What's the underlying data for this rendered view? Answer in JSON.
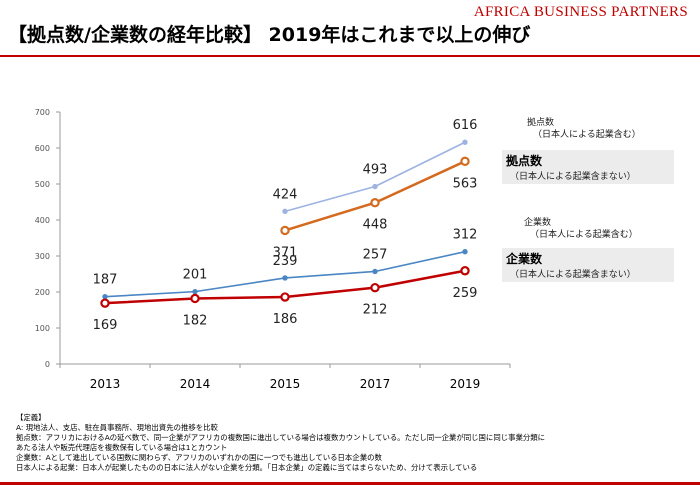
{
  "brand": "AFRICA BUSINESS PARTNERS",
  "title": "【拠点数/企業数の経年比較】 2019年はこれまで以上の伸び",
  "colors": {
    "brand_red": "#c00000",
    "bases_incl": "#9db3e0",
    "bases_excl": "#d46a1f",
    "companies_incl": "#4a86c3",
    "companies_excl": "#c00000",
    "label_bg": "#ececec"
  },
  "chart_data": {
    "type": "line",
    "categories": [
      "2013",
      "2014",
      "2015",
      "2017",
      "2019"
    ],
    "ylim": [
      0,
      700
    ],
    "yticks": [
      0,
      100,
      200,
      300,
      400,
      500,
      600,
      700
    ],
    "grid": false,
    "series": [
      {
        "name": "拠点数（日本人による起業含む）",
        "values": [
          null,
          null,
          424,
          493,
          616
        ],
        "color": "#9db3e0",
        "markers": "circle-filled-small",
        "label_pos": "above"
      },
      {
        "name": "拠点数（日本人による起業含まない）",
        "values": [
          null,
          null,
          371,
          448,
          563
        ],
        "color": "#d46a1f",
        "markers": "circle-open",
        "label_pos": "below"
      },
      {
        "name": "企業数（日本人による起業含む）",
        "values": [
          187,
          201,
          239,
          257,
          312
        ],
        "color": "#4a86c3",
        "markers": "circle-filled-small",
        "label_pos": "above"
      },
      {
        "name": "企業数（日本人による起業含まない）",
        "values": [
          169,
          182,
          186,
          212,
          259
        ],
        "color": "#c00000",
        "markers": "circle-open",
        "label_pos": "below"
      }
    ]
  },
  "legend": {
    "bases_incl": {
      "head": "拠点数",
      "sub": "（日本人による起業含む）"
    },
    "bases_excl": {
      "head": "拠点数",
      "sub": "（日本人による起業含まない）"
    },
    "companies_incl": {
      "head": "企業数",
      "sub": "（日本人による起業含む）"
    },
    "companies_excl": {
      "head": "企業数",
      "sub": "（日本人による起業含まない）"
    }
  },
  "definitions": {
    "heading": "【定義】",
    "lines": [
      "A: 現地法人、支店、駐在員事務所、現地出資先の推移を比較",
      "拠点数：アフリカにおけるAの延べ数で、同一企業がアフリカの複数国に進出している場合は複数カウントしている。ただし同一企業が同じ国に同じ事業分類に",
      "あたる法人や販売代理店を複数保有している場合は1とカウント",
      "企業数：Aとして進出している国数に関わらず、アフリカのいずれかの国に一つでも進出している日本企業の数",
      "日本人による起業：日本人が起業したものの日本に法人がない企業を分類。「日本企業」の定義に当てはまらないため、分けて表示している"
    ]
  }
}
